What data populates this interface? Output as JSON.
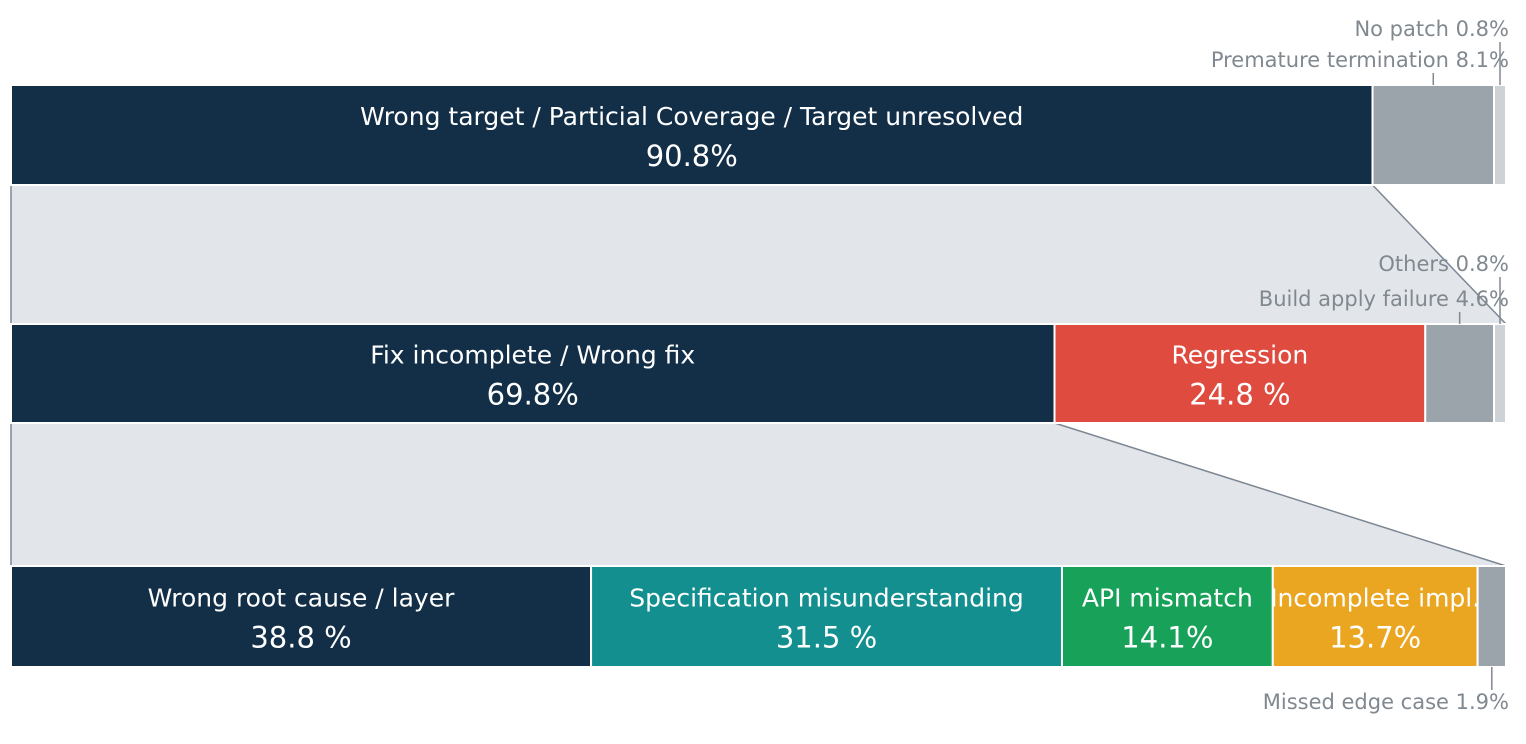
{
  "chart_data": {
    "type": "bar",
    "subtype": "stacked-breakdown",
    "title": "",
    "colors": {
      "navy": "#132f48",
      "gray": "#9ba3ab",
      "light_gray": "#cdd2d7",
      "red": "#e04b40",
      "teal": "#148f8f",
      "green": "#18a159",
      "orange": "#eba621",
      "connector": "#e2e6ea",
      "connector_line": "#7d8894",
      "label_text": "#808890",
      "white": "#ffffff"
    },
    "rows": [
      {
        "id": "row-1",
        "segments": [
          {
            "label": "Wrong target / Particial Coverage / Target unresolved",
            "value": 90.8,
            "value_text": "90.8%",
            "color": "navy",
            "label_inside": true
          },
          {
            "label": "Premature termination",
            "value": 8.1,
            "value_text": "8.1%",
            "color": "gray",
            "label_inside": false,
            "external_text": "Premature termination 8.1%"
          },
          {
            "label": "No patch",
            "value": 0.8,
            "value_text": "0.8%",
            "color": "light_gray",
            "label_inside": false,
            "external_text": "No patch 0.8%"
          }
        ]
      },
      {
        "id": "row-2",
        "segments": [
          {
            "label": "Fix incomplete / Wrong fix",
            "value": 69.8,
            "value_text": "69.8%",
            "color": "navy",
            "label_inside": true
          },
          {
            "label": "Regression",
            "value": 24.8,
            "value_text": "24.8 %",
            "color": "red",
            "label_inside": true
          },
          {
            "label": "Build apply failure",
            "value": 4.6,
            "value_text": "4.6%",
            "color": "gray",
            "label_inside": false,
            "external_text": "Build apply failure 4.6%"
          },
          {
            "label": "Others",
            "value": 0.8,
            "value_text": "0.8%",
            "color": "light_gray",
            "label_inside": false,
            "external_text": "Others 0.8%"
          }
        ]
      },
      {
        "id": "row-3",
        "segments": [
          {
            "label": "Wrong root cause / layer",
            "value": 38.8,
            "value_text": "38.8 %",
            "color": "navy",
            "label_inside": true
          },
          {
            "label": "Specification misunderstanding",
            "value": 31.5,
            "value_text": "31.5 %",
            "color": "teal",
            "label_inside": true
          },
          {
            "label": "API mismatch",
            "value": 14.1,
            "value_text": "14.1%",
            "color": "green",
            "label_inside": true
          },
          {
            "label": "Incomplete impl.",
            "value": 13.7,
            "value_text": "13.7%",
            "color": "orange",
            "label_inside": true
          },
          {
            "label": "Missed edge case",
            "value": 1.9,
            "value_text": "1.9%",
            "color": "gray",
            "label_inside": false,
            "external_text": "Missed edge case 1.9%"
          }
        ]
      }
    ],
    "drilldowns": [
      {
        "from_row": 0,
        "from_segment": 0,
        "to_row": 1
      },
      {
        "from_row": 1,
        "from_segment": 0,
        "to_row": 2
      }
    ]
  }
}
